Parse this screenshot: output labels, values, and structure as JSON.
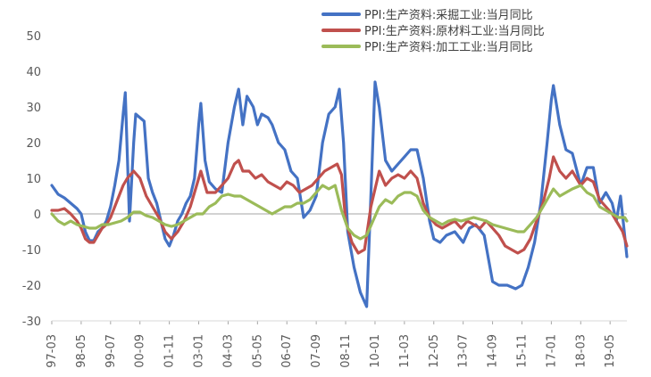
{
  "chart_data": {
    "type": "line",
    "title": "",
    "xlabel": "",
    "ylabel": "",
    "ylim": [
      -30,
      50
    ],
    "yticks": [
      -30,
      -20,
      -10,
      0,
      10,
      20,
      30,
      40,
      50
    ],
    "xticks": [
      "97-03",
      "98-05",
      "99-07",
      "00-09",
      "01-11",
      "03-01",
      "04-03",
      "05-05",
      "06-07",
      "07-09",
      "08-11",
      "10-01",
      "11-03",
      "12-05",
      "13-07",
      "14-09",
      "15-11",
      "17-01",
      "18-03",
      "19-05"
    ],
    "legend_position": "top-right",
    "grid": false,
    "series": [
      {
        "name": "PPI:生产资料:采掘工业:当月同比",
        "color": "#4472C4",
        "points": [
          [
            "97-03",
            8
          ],
          [
            "97-06",
            5.5
          ],
          [
            "97-09",
            4.5
          ],
          [
            "97-12",
            3
          ],
          [
            "98-03",
            1.5
          ],
          [
            "98-05",
            0
          ],
          [
            "98-07",
            -5
          ],
          [
            "98-09",
            -7.5
          ],
          [
            "98-11",
            -7.5
          ],
          [
            "99-01",
            -5
          ],
          [
            "99-03",
            -4
          ],
          [
            "99-05",
            -2
          ],
          [
            "99-07",
            2
          ],
          [
            "99-09",
            8
          ],
          [
            "99-11",
            15
          ],
          [
            "00-01",
            28
          ],
          [
            "00-02",
            34
          ],
          [
            "00-04",
            -2
          ],
          [
            "00-06",
            20
          ],
          [
            "00-07",
            28
          ],
          [
            "00-09",
            27
          ],
          [
            "00-11",
            26
          ],
          [
            "01-01",
            10
          ],
          [
            "01-03",
            6
          ],
          [
            "01-05",
            3
          ],
          [
            "01-07",
            -2
          ],
          [
            "01-09",
            -7
          ],
          [
            "01-11",
            -9
          ],
          [
            "02-01",
            -6
          ],
          [
            "02-03",
            -2
          ],
          [
            "02-05",
            0
          ],
          [
            "02-07",
            3
          ],
          [
            "02-09",
            5
          ],
          [
            "02-11",
            10
          ],
          [
            "03-01",
            25
          ],
          [
            "03-02",
            31
          ],
          [
            "03-04",
            15
          ],
          [
            "03-06",
            9
          ],
          [
            "03-09",
            7
          ],
          [
            "03-12",
            6
          ],
          [
            "04-03",
            20
          ],
          [
            "04-06",
            30
          ],
          [
            "04-08",
            35
          ],
          [
            "04-10",
            25
          ],
          [
            "04-12",
            33
          ],
          [
            "05-03",
            30
          ],
          [
            "05-05",
            25
          ],
          [
            "05-07",
            28
          ],
          [
            "05-10",
            27
          ],
          [
            "05-12",
            25
          ],
          [
            "06-03",
            20
          ],
          [
            "06-06",
            18
          ],
          [
            "06-09",
            12
          ],
          [
            "06-12",
            10
          ],
          [
            "07-03",
            -1
          ],
          [
            "07-06",
            1
          ],
          [
            "07-09",
            5
          ],
          [
            "07-12",
            20
          ],
          [
            "08-03",
            28
          ],
          [
            "08-06",
            30
          ],
          [
            "08-08",
            35
          ],
          [
            "08-10",
            20
          ],
          [
            "08-12",
            -5
          ],
          [
            "09-03",
            -15
          ],
          [
            "09-06",
            -22
          ],
          [
            "09-09",
            -26
          ],
          [
            "09-11",
            5
          ],
          [
            "10-01",
            37
          ],
          [
            "10-03",
            30
          ],
          [
            "10-06",
            15
          ],
          [
            "10-09",
            12
          ],
          [
            "10-12",
            14
          ],
          [
            "11-03",
            16
          ],
          [
            "11-06",
            18
          ],
          [
            "11-09",
            18
          ],
          [
            "11-12",
            10
          ],
          [
            "12-03",
            -2
          ],
          [
            "12-05",
            -7
          ],
          [
            "12-08",
            -8
          ],
          [
            "12-11",
            -6
          ],
          [
            "13-03",
            -5
          ],
          [
            "13-07",
            -8
          ],
          [
            "13-10",
            -4
          ],
          [
            "14-01",
            -3
          ],
          [
            "14-05",
            -6
          ],
          [
            "14-09",
            -19
          ],
          [
            "14-12",
            -20
          ],
          [
            "15-04",
            -20
          ],
          [
            "15-08",
            -21
          ],
          [
            "15-11",
            -20
          ],
          [
            "16-02",
            -15
          ],
          [
            "16-05",
            -8
          ],
          [
            "16-08",
            3
          ],
          [
            "16-11",
            20
          ],
          [
            "17-01",
            32
          ],
          [
            "17-02",
            36
          ],
          [
            "17-05",
            25
          ],
          [
            "17-08",
            18
          ],
          [
            "17-11",
            17
          ],
          [
            "18-03",
            8
          ],
          [
            "18-06",
            13
          ],
          [
            "18-09",
            13
          ],
          [
            "18-12",
            3
          ],
          [
            "19-03",
            6
          ],
          [
            "19-06",
            3
          ],
          [
            "19-08",
            -2
          ],
          [
            "19-10",
            5
          ],
          [
            "20-01",
            -12
          ]
        ]
      },
      {
        "name": "PPI:生产资料:原材料工业:当月同比",
        "color": "#C0504D",
        "points": [
          [
            "97-03",
            1
          ],
          [
            "97-06",
            1
          ],
          [
            "97-09",
            1.5
          ],
          [
            "97-12",
            0
          ],
          [
            "98-03",
            -2
          ],
          [
            "98-05",
            -4
          ],
          [
            "98-07",
            -7
          ],
          [
            "98-09",
            -8
          ],
          [
            "98-11",
            -8
          ],
          [
            "99-01",
            -6
          ],
          [
            "99-03",
            -4
          ],
          [
            "99-05",
            -3
          ],
          [
            "99-07",
            -1
          ],
          [
            "99-09",
            2
          ],
          [
            "99-11",
            5
          ],
          [
            "00-01",
            8
          ],
          [
            "00-03",
            10
          ],
          [
            "00-06",
            12
          ],
          [
            "00-09",
            10
          ],
          [
            "00-12",
            5
          ],
          [
            "01-03",
            2
          ],
          [
            "01-06",
            -1
          ],
          [
            "01-09",
            -5
          ],
          [
            "01-12",
            -7
          ],
          [
            "02-03",
            -5
          ],
          [
            "02-06",
            -2
          ],
          [
            "02-09",
            2
          ],
          [
            "02-12",
            8
          ],
          [
            "03-02",
            12
          ],
          [
            "03-05",
            6
          ],
          [
            "03-09",
            6
          ],
          [
            "03-12",
            8
          ],
          [
            "04-03",
            10
          ],
          [
            "04-06",
            14
          ],
          [
            "04-08",
            15
          ],
          [
            "04-10",
            12
          ],
          [
            "05-01",
            12
          ],
          [
            "05-04",
            10
          ],
          [
            "05-07",
            11
          ],
          [
            "05-10",
            9
          ],
          [
            "06-01",
            8
          ],
          [
            "06-04",
            7
          ],
          [
            "06-07",
            9
          ],
          [
            "06-10",
            8
          ],
          [
            "07-01",
            6
          ],
          [
            "07-04",
            7
          ],
          [
            "07-07",
            8
          ],
          [
            "07-10",
            10
          ],
          [
            "08-01",
            12
          ],
          [
            "08-04",
            13
          ],
          [
            "08-07",
            14
          ],
          [
            "08-09",
            11
          ],
          [
            "08-11",
            -2
          ],
          [
            "09-02",
            -8
          ],
          [
            "09-05",
            -11
          ],
          [
            "09-08",
            -10
          ],
          [
            "09-11",
            2
          ],
          [
            "10-03",
            12
          ],
          [
            "10-06",
            8
          ],
          [
            "10-09",
            10
          ],
          [
            "10-12",
            11
          ],
          [
            "11-03",
            10
          ],
          [
            "11-06",
            12
          ],
          [
            "11-09",
            10
          ],
          [
            "11-12",
            3
          ],
          [
            "12-03",
            -1
          ],
          [
            "12-06",
            -3
          ],
          [
            "12-09",
            -4
          ],
          [
            "12-12",
            -3
          ],
          [
            "13-03",
            -2
          ],
          [
            "13-06",
            -4
          ],
          [
            "13-09",
            -2
          ],
          [
            "13-12",
            -3
          ],
          [
            "14-03",
            -4
          ],
          [
            "14-06",
            -2
          ],
          [
            "14-09",
            -4
          ],
          [
            "14-12",
            -6
          ],
          [
            "15-03",
            -9
          ],
          [
            "15-06",
            -10
          ],
          [
            "15-09",
            -11
          ],
          [
            "15-12",
            -10
          ],
          [
            "16-03",
            -7
          ],
          [
            "16-06",
            -2
          ],
          [
            "16-09",
            3
          ],
          [
            "16-12",
            10
          ],
          [
            "17-02",
            16
          ],
          [
            "17-05",
            12
          ],
          [
            "17-08",
            10
          ],
          [
            "17-11",
            12
          ],
          [
            "18-03",
            8
          ],
          [
            "18-06",
            10
          ],
          [
            "18-09",
            9
          ],
          [
            "18-12",
            4
          ],
          [
            "19-03",
            2
          ],
          [
            "19-06",
            0
          ],
          [
            "19-09",
            -3
          ],
          [
            "19-11",
            -5
          ],
          [
            "20-01",
            -9
          ]
        ]
      },
      {
        "name": "PPI:生产资料:加工工业:当月同比",
        "color": "#9BBB59",
        "points": [
          [
            "97-03",
            0
          ],
          [
            "97-06",
            -2
          ],
          [
            "97-09",
            -3
          ],
          [
            "97-12",
            -2
          ],
          [
            "98-03",
            -3
          ],
          [
            "98-06",
            -3.5
          ],
          [
            "98-09",
            -4
          ],
          [
            "98-12",
            -4
          ],
          [
            "99-03",
            -3
          ],
          [
            "99-06",
            -3
          ],
          [
            "99-09",
            -2.5
          ],
          [
            "99-12",
            -2
          ],
          [
            "00-03",
            -1
          ],
          [
            "00-06",
            0.5
          ],
          [
            "00-09",
            0.5
          ],
          [
            "00-12",
            -0.5
          ],
          [
            "01-03",
            -1
          ],
          [
            "01-06",
            -2
          ],
          [
            "01-09",
            -3
          ],
          [
            "01-12",
            -3.5
          ],
          [
            "02-03",
            -3
          ],
          [
            "02-06",
            -2
          ],
          [
            "02-09",
            -1
          ],
          [
            "02-12",
            0
          ],
          [
            "03-03",
            0
          ],
          [
            "03-06",
            2
          ],
          [
            "03-09",
            3
          ],
          [
            "03-12",
            5
          ],
          [
            "04-03",
            5.5
          ],
          [
            "04-06",
            5
          ],
          [
            "04-09",
            5
          ],
          [
            "04-12",
            4
          ],
          [
            "05-03",
            3
          ],
          [
            "05-06",
            2
          ],
          [
            "05-09",
            1
          ],
          [
            "05-12",
            0
          ],
          [
            "06-03",
            1
          ],
          [
            "06-06",
            2
          ],
          [
            "06-09",
            2
          ],
          [
            "06-12",
            3
          ],
          [
            "07-03",
            3
          ],
          [
            "07-06",
            4
          ],
          [
            "07-09",
            6
          ],
          [
            "07-12",
            8
          ],
          [
            "08-03",
            7
          ],
          [
            "08-06",
            8
          ],
          [
            "08-09",
            1
          ],
          [
            "08-12",
            -4
          ],
          [
            "09-03",
            -6
          ],
          [
            "09-06",
            -7
          ],
          [
            "09-09",
            -6
          ],
          [
            "09-12",
            -2
          ],
          [
            "10-03",
            2
          ],
          [
            "10-06",
            4
          ],
          [
            "10-09",
            3
          ],
          [
            "10-12",
            5
          ],
          [
            "11-03",
            6
          ],
          [
            "11-06",
            6
          ],
          [
            "11-09",
            5
          ],
          [
            "11-12",
            1
          ],
          [
            "12-03",
            -1
          ],
          [
            "12-06",
            -2
          ],
          [
            "12-09",
            -3
          ],
          [
            "12-12",
            -2
          ],
          [
            "13-03",
            -1.5
          ],
          [
            "13-06",
            -2
          ],
          [
            "13-09",
            -1.5
          ],
          [
            "13-12",
            -1
          ],
          [
            "14-03",
            -1.5
          ],
          [
            "14-06",
            -2
          ],
          [
            "14-09",
            -3
          ],
          [
            "14-12",
            -3.5
          ],
          [
            "15-03",
            -4
          ],
          [
            "15-06",
            -4.5
          ],
          [
            "15-09",
            -5
          ],
          [
            "15-12",
            -5
          ],
          [
            "16-03",
            -3
          ],
          [
            "16-06",
            -1
          ],
          [
            "16-09",
            2
          ],
          [
            "16-12",
            5
          ],
          [
            "17-02",
            7
          ],
          [
            "17-05",
            5
          ],
          [
            "17-08",
            6
          ],
          [
            "17-11",
            7
          ],
          [
            "18-03",
            8
          ],
          [
            "18-06",
            6
          ],
          [
            "18-09",
            5
          ],
          [
            "18-12",
            2
          ],
          [
            "19-03",
            1
          ],
          [
            "19-06",
            0
          ],
          [
            "19-09",
            -1
          ],
          [
            "19-12",
            -1
          ],
          [
            "20-01",
            -2
          ]
        ]
      }
    ]
  }
}
